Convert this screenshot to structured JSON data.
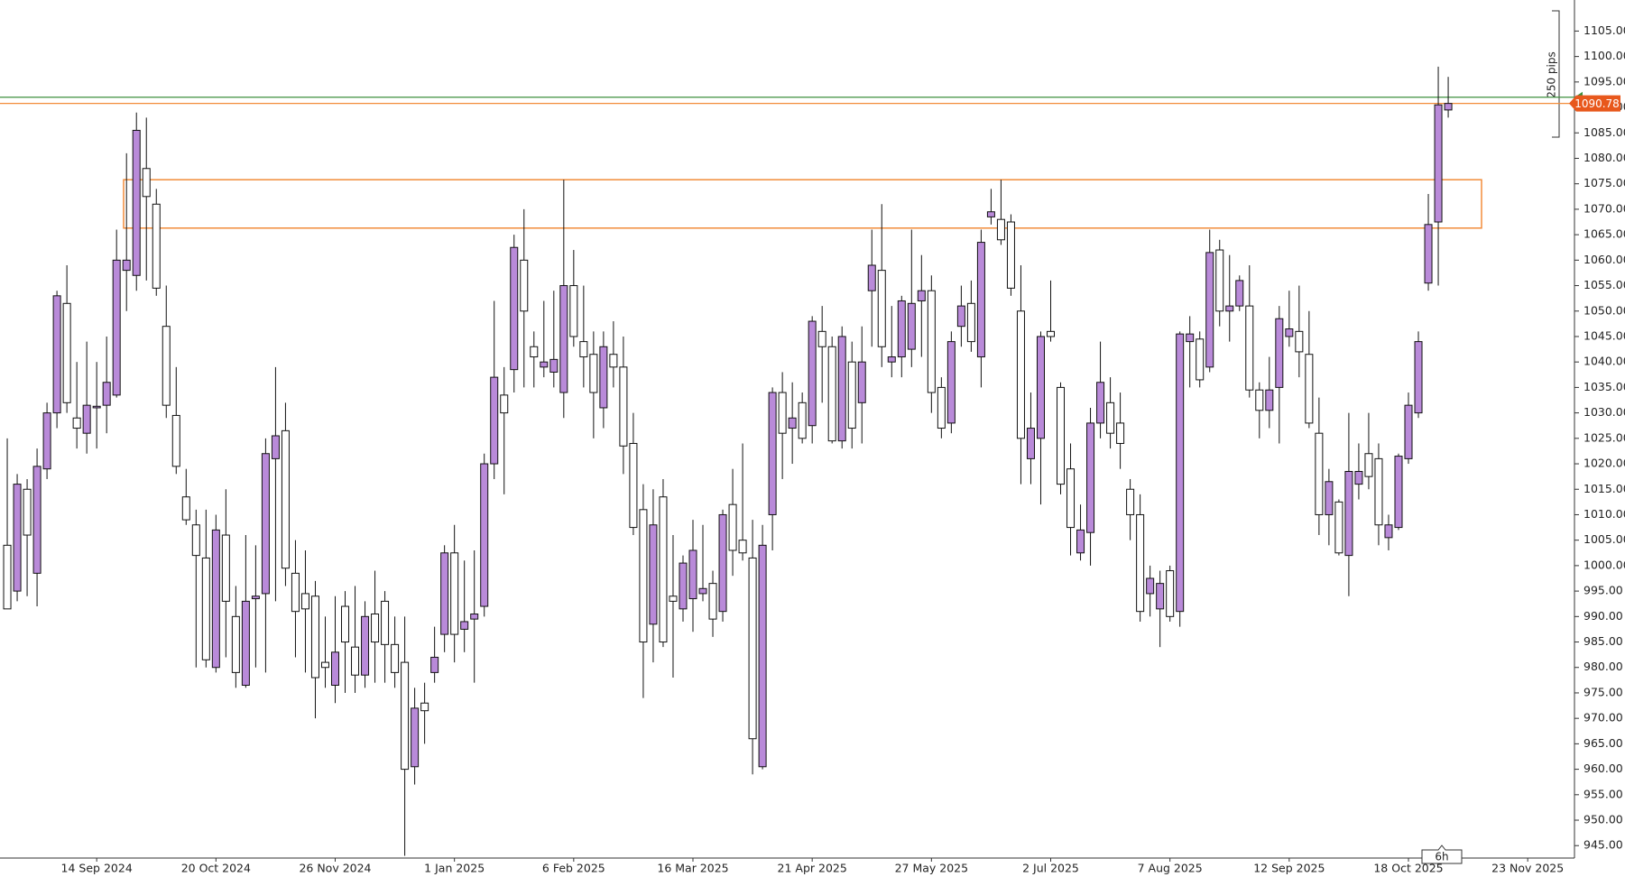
{
  "chart_data": {
    "type": "candlestick",
    "categories": [
      null,
      null,
      null,
      null,
      null,
      null,
      null,
      null,
      null,
      "14 Sep 2024",
      null,
      null,
      null,
      null,
      null,
      null,
      null,
      null,
      null,
      null,
      null,
      "20 Oct 2024",
      null,
      null,
      null,
      null,
      null,
      null,
      null,
      null,
      null,
      null,
      null,
      "26 Nov 2024",
      null,
      null,
      null,
      null,
      null,
      null,
      null,
      null,
      null,
      null,
      null,
      "1 Jan 2025",
      null,
      null,
      null,
      null,
      null,
      null,
      null,
      null,
      null,
      null,
      null,
      "6 Feb 2025",
      null,
      null,
      null,
      null,
      null,
      null,
      null,
      null,
      null,
      null,
      null,
      "16 Mar 2025",
      null,
      null,
      null,
      null,
      null,
      null,
      null,
      null,
      null,
      null,
      null,
      "21 Apr 2025",
      null,
      null,
      null,
      null,
      null,
      null,
      null,
      null,
      null,
      null,
      null,
      "27 May 2025",
      null,
      null,
      null,
      null,
      null,
      null,
      null,
      null,
      null,
      null,
      null,
      "2 Jul 2025",
      null,
      null,
      null,
      null,
      null,
      null,
      null,
      null,
      null,
      null,
      null,
      "7 Aug 2025",
      null,
      null,
      null,
      null,
      null,
      null,
      null,
      null,
      null,
      null,
      null,
      "12 Sep 2025",
      null,
      null,
      null,
      null,
      null,
      null,
      null,
      null,
      null,
      null,
      null,
      "18 Oct 2025",
      null,
      null,
      null,
      null,
      null,
      null,
      null,
      null,
      null,
      null,
      null,
      "23 Nov 2025"
    ],
    "open": [
      1004,
      995,
      1015,
      998.5,
      1019,
      1030,
      1051.5,
      1029,
      1026,
      1031,
      1031.5,
      1033.5,
      1058,
      1057,
      1078,
      1071,
      1047,
      1029.5,
      1013.5,
      1008,
      1001.5,
      980,
      1006,
      990,
      976.5,
      993.5,
      994.5,
      1021,
      1026.5,
      998.5,
      994.5,
      994,
      981,
      976.5,
      992,
      984,
      978.5,
      990.5,
      993,
      984.5,
      981,
      960.5,
      973,
      979,
      986.5,
      1002.5,
      987.5,
      989.5,
      992,
      1020,
      1033.5,
      1038.5,
      1060,
      1043,
      1039,
      1038,
      1034,
      1055,
      1044,
      1041.5,
      1031,
      1041.5,
      1039,
      1024,
      1011,
      988.5,
      1013.5,
      994,
      991.5,
      993.5,
      994.5,
      996.5,
      991,
      1012,
      1005,
      1001.5,
      960.5,
      1010,
      1034,
      1027,
      1032,
      1027.5,
      1046,
      1043,
      1024.5,
      1040,
      1032,
      1054,
      1058,
      1040,
      1041,
      1042.5,
      1052,
      1054,
      1035,
      1028,
      1047,
      1051.5,
      1041,
      1068.5,
      1068,
      1067.5,
      1050,
      1021,
      1025,
      1046,
      1035,
      1019,
      1002.5,
      1006.5,
      1028,
      1032,
      1028,
      1015,
      1010,
      994.5,
      991.5,
      999,
      991,
      1044,
      1044.5,
      1039,
      1062,
      1050,
      1051,
      1051,
      1034.5,
      1030.5,
      1035,
      1045,
      1046,
      1041.5,
      1026,
      1010,
      1012.5,
      1002,
      1016,
      1022,
      1021,
      1005.5,
      1007.5,
      1021,
      1030,
      1055.5,
      1067.5,
      1089.5,
      null,
      null,
      null,
      null,
      null,
      null,
      null,
      null
    ],
    "high": [
      1025,
      1018,
      1017,
      1023,
      1032,
      1054,
      1059,
      1040,
      1044,
      1040,
      1045,
      1066,
      1081,
      1089,
      1088,
      1074,
      1055,
      1039,
      1019,
      1011,
      1011,
      1010,
      1015,
      996,
      1006,
      1004,
      1025,
      1039,
      1032,
      1005,
      1003,
      997,
      990,
      994,
      995,
      996,
      993,
      999,
      995,
      990,
      990,
      976,
      977,
      988,
      1004,
      1008,
      1001,
      1003,
      1022,
      1052,
      1039,
      1065,
      1070,
      1046,
      1052,
      1054,
      1075.8,
      1062,
      1055,
      1046,
      1046,
      1048,
      1045,
      1030,
      1016,
      1015,
      1017,
      1006,
      1002,
      1009,
      1008,
      999,
      1011,
      1019,
      1024,
      1009,
      1008,
      1035,
      1038,
      1036,
      1034,
      1049,
      1051,
      1045,
      1047,
      1044,
      1047,
      1066,
      1071,
      1051,
      1053,
      1066,
      1061,
      1057,
      1037,
      1046,
      1055,
      1056,
      1066,
      1074,
      1075.8,
      1069,
      1059,
      1034,
      1046,
      1056,
      1036,
      1024,
      1012,
      1031,
      1044,
      1037,
      1034,
      1017,
      1014,
      1000,
      999,
      1000,
      1046,
      1049,
      1046,
      1066,
      1064,
      1061,
      1057,
      1059,
      1036,
      1041,
      1051,
      1054,
      1055,
      1050,
      1033,
      1019,
      1013,
      1030,
      1024,
      1030,
      1024,
      1010,
      1022,
      1034,
      1046,
      1073,
      1098,
      1096,
      null,
      null,
      null,
      null,
      null,
      null,
      null,
      null
    ],
    "low": [
      992,
      993,
      994,
      992,
      1017,
      1027,
      1030,
      1023,
      1022,
      1023,
      1026,
      1033,
      1050,
      1054,
      1056,
      1053,
      1029,
      1018,
      1008,
      980,
      980,
      979,
      982,
      976,
      976,
      980,
      979,
      993,
      996,
      982,
      979,
      970,
      976,
      973,
      975,
      975,
      976,
      977,
      977,
      976,
      943,
      957,
      965,
      977,
      983,
      981,
      983,
      977,
      990,
      1017,
      1014,
      1034,
      1035,
      1035,
      1037,
      1035,
      1029,
      1043,
      1035,
      1025,
      1027,
      1035,
      1018,
      1006,
      974,
      981,
      984,
      978,
      989,
      987,
      993,
      986,
      989,
      998,
      1001,
      959,
      960,
      1003,
      1017,
      1020,
      1024,
      1024,
      1032,
      1024,
      1023,
      1023,
      1024,
      1043,
      1039,
      1037,
      1037,
      1039,
      1041,
      1030,
      1025,
      1026,
      1043,
      1042,
      1035,
      1067,
      1063,
      1053,
      1016,
      1016,
      1012,
      1044,
      1014,
      1002,
      1001,
      1000,
      1025,
      1023,
      1019,
      1005,
      989,
      990,
      984,
      989,
      988,
      1035,
      1035,
      1038,
      1047,
      1044,
      1050,
      1033,
      1025,
      1027,
      1024,
      1043,
      1037,
      1027,
      1006,
      1004,
      1002,
      994,
      1013,
      1015,
      1004,
      1003,
      1007,
      1020,
      1029,
      1054,
      1055,
      1088,
      null,
      null,
      null,
      null,
      null,
      null,
      null,
      null
    ],
    "close": [
      991.5,
      1016,
      1006,
      1019.5,
      1030,
      1053,
      1032,
      1027,
      1031.5,
      1031.3,
      1036,
      1060,
      1060,
      1085.5,
      1072.5,
      1054.5,
      1031.5,
      1019.5,
      1009,
      1002,
      981.5,
      1007,
      993,
      979,
      993,
      994,
      1022,
      1025.5,
      999.5,
      991,
      991.5,
      978,
      980,
      983,
      985,
      978.5,
      990,
      985,
      984.5,
      979,
      960,
      972,
      971.5,
      982,
      1002.5,
      986.5,
      989,
      990.5,
      1020,
      1037,
      1030,
      1062.5,
      1050,
      1041,
      1040,
      1040.5,
      1055,
      1045,
      1041,
      1034,
      1043,
      1039,
      1023.5,
      1007.5,
      985,
      1008,
      985,
      993,
      1000.5,
      1003,
      995.5,
      989.5,
      1010,
      1003,
      1002.5,
      966,
      1004,
      1034,
      1026,
      1029,
      1025,
      1048,
      1043,
      1024.5,
      1045,
      1027,
      1040,
      1059,
      1043,
      1041,
      1052,
      1051.5,
      1054,
      1034,
      1027,
      1044,
      1051,
      1044,
      1063.5,
      1069.5,
      1064,
      1054.5,
      1025,
      1027,
      1045,
      1045,
      1016,
      1007.5,
      1007,
      1028,
      1036,
      1026,
      1024,
      1010,
      991,
      997.5,
      996.5,
      990,
      1045.5,
      1045.5,
      1036.5,
      1061.5,
      1050,
      1051,
      1056,
      1034.5,
      1030.5,
      1034.5,
      1048.5,
      1046.5,
      1042,
      1028,
      1010,
      1016.5,
      1002.5,
      1018.5,
      1018.5,
      1017.5,
      1008,
      1008,
      1021.5,
      1031.5,
      1044,
      1067,
      1090.5,
      1090.78,
      null,
      null,
      null,
      null,
      null,
      null,
      null,
      null
    ],
    "up_color": "#b98ad9",
    "down_color": "#ffffff",
    "ylim": [
      942.56,
      1111.1
    ],
    "yticks": [
      {
        "value": 945,
        "label": "945.00"
      },
      {
        "value": 950,
        "label": "950.00"
      },
      {
        "value": 955,
        "label": "955.00"
      },
      {
        "value": 960,
        "label": "960.00"
      },
      {
        "value": 965,
        "label": "965.00"
      },
      {
        "value": 970,
        "label": "970.00"
      },
      {
        "value": 975,
        "label": "975.00"
      },
      {
        "value": 980,
        "label": "980.00"
      },
      {
        "value": 985,
        "label": "985.00"
      },
      {
        "value": 990,
        "label": "990.00"
      },
      {
        "value": 995,
        "label": "995.00"
      },
      {
        "value": 1000,
        "label": "1000.00"
      },
      {
        "value": 1005,
        "label": "1005.00"
      },
      {
        "value": 1010,
        "label": "1010.00"
      },
      {
        "value": 1015,
        "label": "1015.00"
      },
      {
        "value": 1020,
        "label": "1020.00"
      },
      {
        "value": 1025,
        "label": "1025.00"
      },
      {
        "value": 1030,
        "label": "1030.00"
      },
      {
        "value": 1035,
        "label": "1035.00"
      },
      {
        "value": 1040,
        "label": "1040.00"
      },
      {
        "value": 1045,
        "label": "1045.00"
      },
      {
        "value": 1050,
        "label": "1050.00"
      },
      {
        "value": 1055,
        "label": "1055.00"
      },
      {
        "value": 1060,
        "label": "1060.00"
      },
      {
        "value": 1065,
        "label": "1065.00"
      },
      {
        "value": 1070,
        "label": "1070.00"
      },
      {
        "value": 1075,
        "label": "1075.00"
      },
      {
        "value": 1080,
        "label": "1080.00"
      },
      {
        "value": 1085,
        "label": "1085.00"
      },
      {
        "value": 1090,
        "label": "1090.00"
      },
      {
        "value": 1095,
        "label": "1095.00"
      },
      {
        "value": 1100,
        "label": "1100.00"
      },
      {
        "value": 1105,
        "label": "1105.00"
      }
    ],
    "zone": {
      "top": 1075.8,
      "bottom": 1066.3,
      "color": "#f28c3a"
    },
    "green_line": {
      "value": 1092,
      "color": "#3d8f3d"
    },
    "price_line_color": "#f28c3a",
    "price_tag_color": "#e8581c",
    "measure_label": "250 pips",
    "timeframe": "6h"
  }
}
